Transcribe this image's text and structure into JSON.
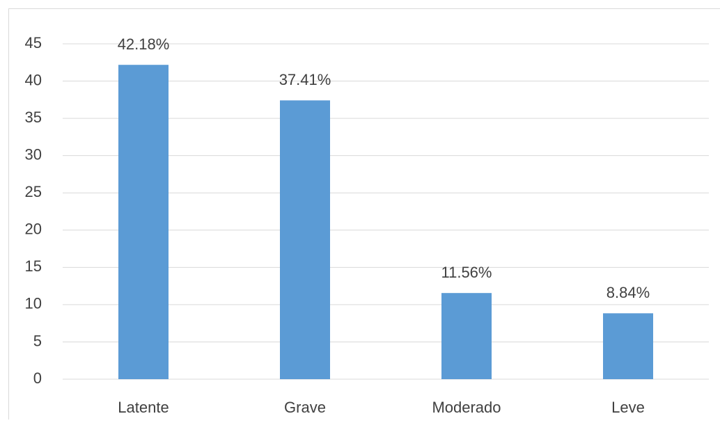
{
  "chart_data": {
    "type": "bar",
    "categories": [
      "Latente",
      "Grave",
      "Moderado",
      "Leve"
    ],
    "values": [
      42.18,
      37.41,
      11.56,
      8.84
    ],
    "value_labels": [
      "42.18%",
      "37.41%",
      "11.56%",
      "8.84%"
    ],
    "color": "#5b9bd5",
    "ylim": [
      0,
      45
    ],
    "yticks": [
      0,
      5,
      10,
      15,
      20,
      25,
      30,
      35,
      40,
      45
    ],
    "grid": true
  }
}
